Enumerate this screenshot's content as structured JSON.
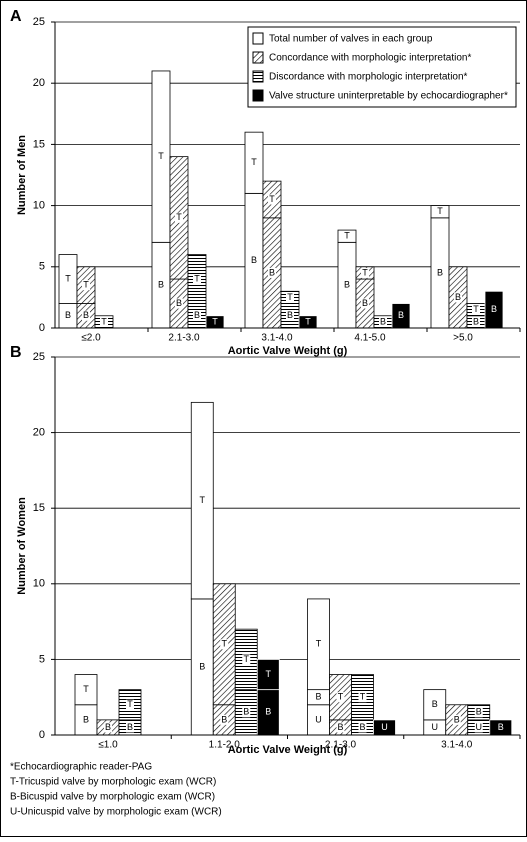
{
  "chart_data": [
    {
      "type": "bar",
      "panel": "A",
      "ylabel": "Number of Men",
      "xlabel": "Aortic Valve Weight (g)",
      "categories": [
        "≤2.0",
        "2.1-3.0",
        "3.1-4.0",
        "4.1-5.0",
        ">5.0"
      ],
      "ylim": [
        0,
        25
      ],
      "yticks": [
        0,
        5,
        10,
        15,
        20,
        25
      ],
      "grid": true,
      "legend": "upper right",
      "series": [
        {
          "name": "Total number of valves in each group",
          "color": "white",
          "segments": [
            {
              "label": "B",
              "values": [
                2,
                7,
                11,
                7,
                9
              ]
            },
            {
              "label": "T",
              "values": [
                4,
                14,
                5,
                1,
                1
              ]
            }
          ]
        },
        {
          "name": "Concordance with morphologic interpretation*",
          "color": "hatch",
          "segments": [
            {
              "label": "B",
              "values": [
                2,
                4,
                9,
                4,
                5
              ]
            },
            {
              "label": "T",
              "values": [
                3,
                10,
                3,
                1,
                null
              ]
            }
          ]
        },
        {
          "name": "Discordance with morphologic interpretation*",
          "color": "hlines",
          "segments": [
            {
              "label": "B",
              "values": [
                null,
                2,
                2,
                1,
                1
              ]
            },
            {
              "label": "T",
              "values": [
                1,
                4,
                1,
                null,
                1
              ]
            }
          ]
        },
        {
          "name": "Valve structure uninterpretable by echocardiographer*",
          "color": "black",
          "segments": [
            {
              "label": "B",
              "values": [
                null,
                null,
                null,
                2,
                3
              ]
            },
            {
              "label": "T",
              "values": [
                null,
                1,
                1,
                null,
                null
              ]
            }
          ]
        }
      ]
    },
    {
      "type": "bar",
      "panel": "B",
      "ylabel": "Number of Women",
      "xlabel": "Aortic Valve Weight (g)",
      "categories": [
        "≤1.0",
        "1.1-2.0",
        "2.1-3.0",
        "3.1-4.0"
      ],
      "ylim": [
        0,
        25
      ],
      "yticks": [
        0,
        5,
        10,
        15,
        20,
        25
      ],
      "grid": true,
      "series": [
        {
          "name": "Total number of valves in each group",
          "color": "white",
          "segments": [
            {
              "label": "U",
              "values": [
                null,
                null,
                2,
                1
              ]
            },
            {
              "label": "B",
              "values": [
                2,
                9,
                1,
                2
              ]
            },
            {
              "label": "T",
              "values": [
                2,
                13,
                6,
                null
              ]
            }
          ]
        },
        {
          "name": "Concordance with morphologic interpretation*",
          "color": "hatch",
          "segments": [
            {
              "label": "B",
              "values": [
                1,
                2,
                1,
                2
              ]
            },
            {
              "label": "T",
              "values": [
                null,
                8,
                3,
                null
              ]
            }
          ]
        },
        {
          "name": "Discordance with morphologic interpretation*",
          "color": "hlines",
          "segments": [
            {
              "label": "U",
              "values": [
                null,
                null,
                null,
                1
              ]
            },
            {
              "label": "B",
              "values": [
                1,
                3,
                1,
                1
              ]
            },
            {
              "label": "T",
              "values": [
                2,
                4,
                3,
                null
              ]
            }
          ]
        },
        {
          "name": "Valve structure uninterpretable by echocardiographer*",
          "color": "black",
          "segments": [
            {
              "label": "U",
              "values": [
                null,
                null,
                1,
                null
              ]
            },
            {
              "label": "B",
              "values": [
                null,
                3,
                null,
                1
              ]
            },
            {
              "label": "T",
              "values": [
                null,
                2,
                null,
                null
              ]
            }
          ]
        }
      ]
    }
  ],
  "footnotes": [
    "*Echocardiographic reader-PAG",
    "T-Tricuspid valve by morphologic exam (WCR)",
    "B-Bicuspid valve by morphologic exam (WCR)",
    "U-Unicuspid valve by morphologic exam (WCR)"
  ]
}
